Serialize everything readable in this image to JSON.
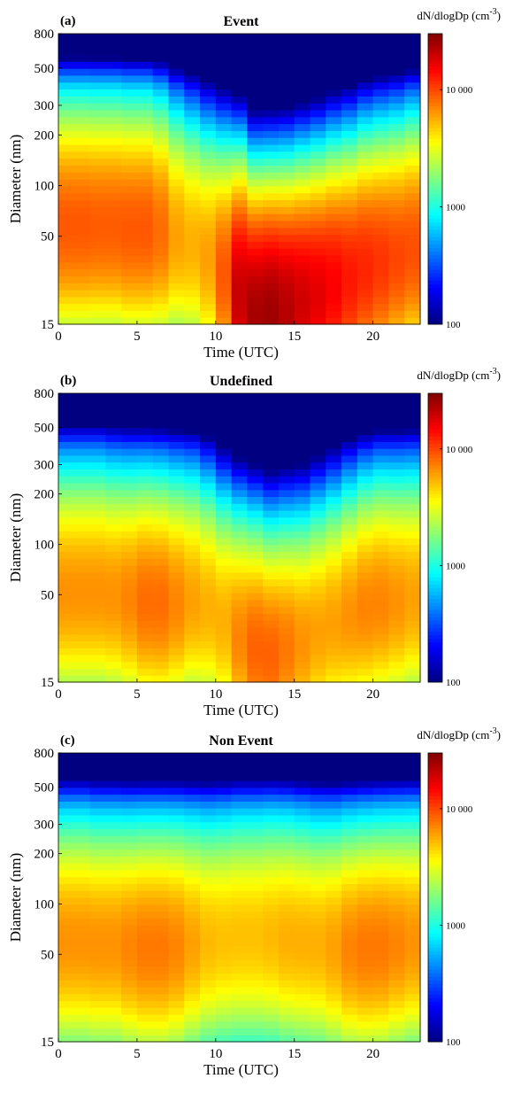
{
  "chart_data": [
    {
      "type": "heatmap",
      "panel_label": "(a)",
      "title": "Event",
      "xlabel": "Time (UTC)",
      "ylabel": "Diameter (nm)",
      "xlim": [
        0,
        23
      ],
      "ylim": [
        15,
        800
      ],
      "yscale": "log",
      "xticks": [
        0,
        5,
        10,
        15,
        20
      ],
      "yticks": [
        15,
        50,
        100,
        200,
        300,
        500,
        800
      ],
      "colorbar": {
        "label": "dN/dlogDp (cm",
        "label_exp": "-3",
        "label_close": ")",
        "scale": "log",
        "range": [
          100,
          30000
        ],
        "ticks": [
          100,
          1000,
          10000
        ],
        "tick_labels": [
          "100",
          "1000",
          "10 000"
        ]
      },
      "mode_diameter_nm": [
        58,
        58,
        58,
        58,
        56,
        56,
        54,
        50,
        45,
        38,
        30,
        22,
        17,
        17,
        18,
        20,
        22,
        25,
        28,
        32,
        35,
        38,
        42
      ],
      "peak_concentration": [
        9000,
        9000,
        8800,
        8800,
        9000,
        9000,
        8000,
        6000,
        5500,
        6000,
        9000,
        20000,
        24000,
        25000,
        22000,
        19000,
        17000,
        15000,
        13000,
        12000,
        11000,
        10000,
        9500
      ]
    },
    {
      "type": "heatmap",
      "panel_label": "(b)",
      "title": "Undefined",
      "xlabel": "Time (UTC)",
      "ylabel": "Diameter (nm)",
      "xlim": [
        0,
        23
      ],
      "ylim": [
        15,
        800
      ],
      "yscale": "log",
      "xticks": [
        0,
        5,
        10,
        15,
        20
      ],
      "yticks": [
        15,
        50,
        100,
        200,
        300,
        500,
        800
      ],
      "colorbar": {
        "label": "dN/dlogDp (cm",
        "label_exp": "-3",
        "label_close": ")",
        "scale": "log",
        "range": [
          100,
          30000
        ],
        "ticks": [
          100,
          1000,
          10000
        ],
        "tick_labels": [
          "100",
          "1000",
          "10 000"
        ]
      },
      "mode_diameter_nm": [
        52,
        52,
        52,
        50,
        48,
        46,
        45,
        45,
        46,
        42,
        35,
        28,
        24,
        22,
        24,
        26,
        30,
        34,
        38,
        42,
        45,
        46,
        48
      ],
      "peak_concentration": [
        6500,
        6500,
        6500,
        6500,
        7000,
        8000,
        8000,
        7000,
        6000,
        5500,
        5500,
        7000,
        8500,
        8500,
        7500,
        6500,
        6000,
        6000,
        6500,
        7000,
        7000,
        6500,
        6000
      ]
    },
    {
      "type": "heatmap",
      "panel_label": "(c)",
      "title": "Non Event",
      "xlabel": "Time (UTC)",
      "ylabel": "Diameter (nm)",
      "xlim": [
        0,
        23
      ],
      "ylim": [
        15,
        800
      ],
      "yscale": "log",
      "xticks": [
        0,
        5,
        10,
        15,
        20
      ],
      "yticks": [
        15,
        50,
        100,
        200,
        300,
        500,
        800
      ],
      "colorbar": {
        "label": "dN/dlogDp (cm",
        "label_exp": "-3",
        "label_close": ")",
        "scale": "log",
        "range": [
          100,
          30000
        ],
        "ticks": [
          100,
          1000,
          10000
        ],
        "tick_labels": [
          "100",
          "1000",
          "10 000"
        ]
      },
      "mode_diameter_nm": [
        60,
        60,
        58,
        58,
        56,
        55,
        55,
        56,
        58,
        60,
        62,
        64,
        64,
        64,
        62,
        60,
        58,
        56,
        55,
        55,
        56,
        58,
        60
      ],
      "peak_concentration": [
        6500,
        6500,
        6500,
        6500,
        7000,
        7500,
        7500,
        7000,
        6000,
        5200,
        5000,
        5000,
        5000,
        5200,
        5500,
        5500,
        5500,
        6000,
        7000,
        7500,
        7500,
        7000,
        6500
      ]
    }
  ]
}
